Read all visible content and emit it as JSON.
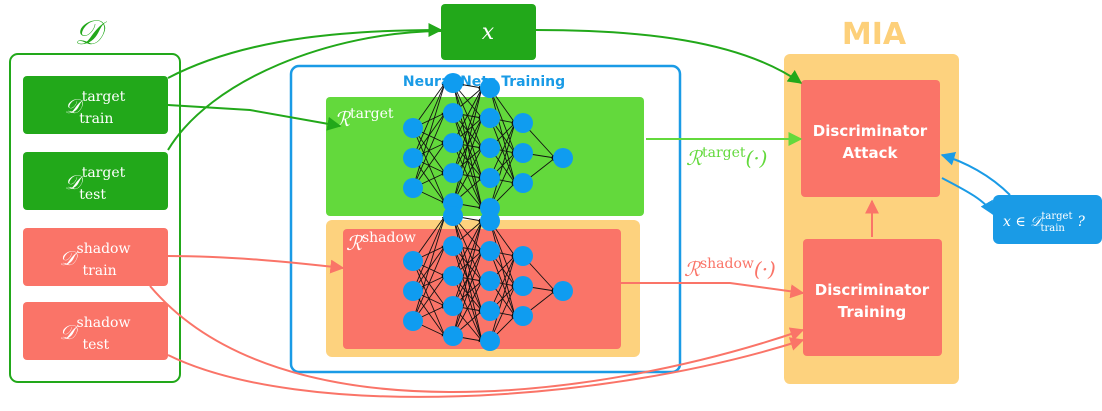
{
  "dataset": {
    "symbol": "𝒟"
  },
  "input": {
    "symbol": "x"
  },
  "mia": {
    "title": "MIA"
  },
  "training_panel": {
    "title": "Neural Nets Training"
  },
  "splits": {
    "target_train": {
      "base": "𝒟",
      "sup": "target",
      "sub": "train"
    },
    "target_test": {
      "base": "𝒟",
      "sup": "target",
      "sub": "test"
    },
    "shadow_train": {
      "base": "𝒟",
      "sup": "shadow",
      "sub": "train"
    },
    "shadow_test": {
      "base": "𝒟",
      "sup": "shadow",
      "sub": "test"
    }
  },
  "models": {
    "target": {
      "base": "ℛ",
      "sup": "target"
    },
    "shadow": {
      "base": "ℛ",
      "sup": "shadow"
    }
  },
  "outputs": {
    "target": {
      "base": "ℛ",
      "sup": "target",
      "arg": "(·)"
    },
    "shadow": {
      "base": "ℛ",
      "sup": "shadow",
      "arg": "(·)"
    }
  },
  "discriminator_attack": {
    "line1": "Discriminator",
    "line2": "Attack"
  },
  "discriminator_training": {
    "line1": "Discriminator",
    "line2": "Training"
  },
  "query": {
    "prefix": "x ∈ ",
    "base": "𝒟",
    "sup": "target",
    "sub": "train",
    "suffix": " ?"
  },
  "colors": {
    "green_dark": "#22a81a",
    "green_light": "#63d93c",
    "salmon": "#fa7468",
    "orange": "#fdd27e",
    "blue": "#1a9be6",
    "node": "#0f9cf0",
    "mia_title": "#fdd07a"
  }
}
